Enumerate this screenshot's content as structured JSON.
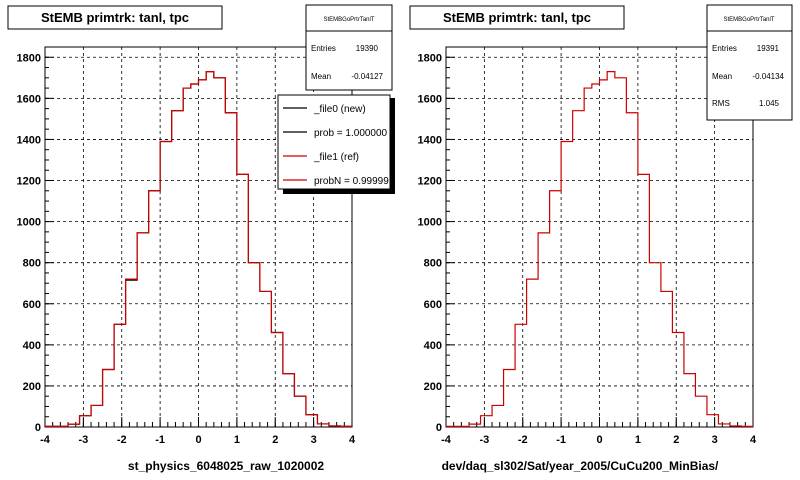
{
  "chart_data": [
    {
      "type": "histogram",
      "title": "StEMB primtrk: tanl, tpc",
      "xlabel": "st_physics_6048025_raw_1020002",
      "xlim": [
        -4,
        4
      ],
      "ylim": [
        0,
        1850
      ],
      "xticks": [
        "-4",
        "-3",
        "-2",
        "-1",
        "0",
        "1",
        "2",
        "3",
        "4"
      ],
      "yticks": [
        "0",
        "200",
        "400",
        "600",
        "800",
        "1000",
        "1200",
        "1400",
        "1600",
        "1800"
      ],
      "grid": true,
      "bin_edges": [
        -4.0,
        -3.7,
        -3.4,
        -3.1,
        -2.8,
        -2.5,
        -2.2,
        -1.9,
        -1.6,
        -1.3,
        -1.0,
        -0.7,
        -0.4,
        -0.2,
        0.0,
        0.2,
        0.4,
        0.7,
        1.0,
        1.3,
        1.6,
        1.9,
        2.2,
        2.5,
        2.8,
        3.1,
        3.4,
        3.7,
        4.0
      ],
      "series": [
        {
          "name": "_file0 (new)",
          "color": "#000000",
          "values": [
            3,
            3,
            14,
            55,
            105,
            280,
            500,
            715,
            945,
            1150,
            1390,
            1540,
            1650,
            1670,
            1690,
            1730,
            1700,
            1530,
            1230,
            800,
            660,
            460,
            260,
            150,
            60,
            15,
            5,
            3
          ]
        },
        {
          "name": "_file1 (ref)",
          "color": "#cc0000",
          "values": [
            3,
            3,
            14,
            55,
            105,
            280,
            500,
            720,
            945,
            1150,
            1390,
            1540,
            1650,
            1670,
            1690,
            1730,
            1700,
            1530,
            1230,
            800,
            660,
            460,
            260,
            150,
            60,
            15,
            5,
            3
          ]
        }
      ],
      "stats": {
        "header": "StEMBGoPrtrTanlT",
        "rows": [
          {
            "label": "Entries",
            "value": "19390"
          },
          {
            "label": "Mean",
            "value": "-0.04127"
          }
        ]
      },
      "legend": {
        "placement": "top-right",
        "entries": [
          {
            "text": "_file0 (new)",
            "color": "#000000"
          },
          {
            "text": "prob = 1.000000",
            "color": "#000000"
          },
          {
            "text": "_file1 (ref)",
            "color": "#cc0000"
          },
          {
            "text": "probN = 0.99999",
            "color": "#cc0000"
          }
        ]
      }
    },
    {
      "type": "histogram",
      "title": "StEMB primtrk: tanl, tpc",
      "xlabel": "dev/daq_sl302/Sat/year_2005/CuCu200_MinBias/",
      "xlim": [
        -4,
        4
      ],
      "ylim": [
        0,
        1850
      ],
      "xticks": [
        "-4",
        "-3",
        "-2",
        "-1",
        "0",
        "1",
        "2",
        "3",
        "4"
      ],
      "yticks": [
        "0",
        "200",
        "400",
        "600",
        "800",
        "1000",
        "1200",
        "1400",
        "1600",
        "1800"
      ],
      "grid": true,
      "bin_edges": [
        -4.0,
        -3.7,
        -3.4,
        -3.1,
        -2.8,
        -2.5,
        -2.2,
        -1.9,
        -1.6,
        -1.3,
        -1.0,
        -0.7,
        -0.4,
        -0.2,
        0.0,
        0.2,
        0.4,
        0.7,
        1.0,
        1.3,
        1.6,
        1.9,
        2.2,
        2.5,
        2.8,
        3.1,
        3.4,
        3.7,
        4.0
      ],
      "series": [
        {
          "color": "#cc0000",
          "values": [
            3,
            3,
            14,
            55,
            105,
            280,
            500,
            720,
            945,
            1150,
            1390,
            1540,
            1650,
            1670,
            1690,
            1730,
            1700,
            1530,
            1230,
            800,
            660,
            460,
            260,
            150,
            60,
            15,
            5,
            3
          ]
        }
      ],
      "stats": {
        "header": "StEMBGoPrtrTanlT",
        "rows": [
          {
            "label": "Entries",
            "value": "19391"
          },
          {
            "label": "Mean",
            "value": "-0.04134"
          },
          {
            "label": "RMS",
            "value": "1.045"
          }
        ]
      }
    }
  ]
}
